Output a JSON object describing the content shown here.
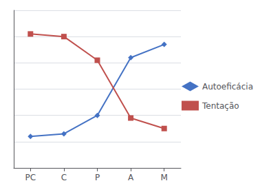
{
  "chart_data": {
    "type": "line",
    "categories": [
      "PC",
      "C",
      "P",
      "A",
      "M"
    ],
    "series": [
      {
        "name": "Autoeficácia",
        "color": "#4472C4",
        "marker": "diamond",
        "values": [
          2.1,
          2.15,
          2.5,
          3.6,
          3.85
        ]
      },
      {
        "name": "Tentação",
        "color": "#C0504D",
        "marker": "square",
        "values": [
          4.05,
          4.0,
          3.55,
          2.45,
          2.25
        ]
      }
    ],
    "ylim": [
      1.5,
      4.5
    ],
    "yticks": [
      2.0,
      2.5,
      3.0,
      3.5,
      4.0,
      4.5
    ],
    "grid": true,
    "legend": "right",
    "tick_labels": "x"
  }
}
